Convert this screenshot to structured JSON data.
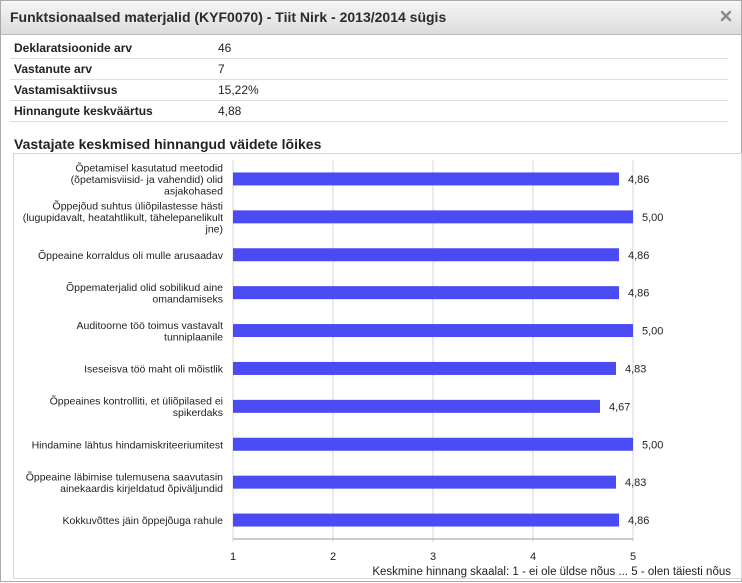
{
  "dialog": {
    "title": "Funktsionaalsed materjalid (KYF0070) - Tiit Nirk - 2013/2014 sügis"
  },
  "stats": [
    {
      "label": "Deklaratsioonide arv",
      "value": "46"
    },
    {
      "label": "Vastanute arv",
      "value": "7"
    },
    {
      "label": "Vastamisaktiivsus",
      "value": "15,22%"
    },
    {
      "label": "Hinnangute keskväärtus",
      "value": "4,88"
    }
  ],
  "section": {
    "title": "Vastajate keskmised hinnangud väidete lõikes"
  },
  "chart_data": {
    "type": "bar",
    "orientation": "horizontal",
    "bar_color": "#4b4bf3",
    "xlim": [
      1,
      5
    ],
    "x_ticks": [
      "1",
      "2",
      "3",
      "4",
      "5"
    ],
    "grid": true,
    "xlabel": "Keskmine hinnang skaalal: 1 - ei ole üldse nõus ... 5 - olen täiesti nõus",
    "categories": [
      [
        "Õpetamisel kasutatud meetodid",
        "(õpetamisviisid- ja vahendid) olid",
        "asjakohased"
      ],
      [
        "Õppejõud suhtus üliõpilastesse hästi",
        "(lugupidavalt, heatahtlikult, tähelepanelikult",
        "jne)"
      ],
      [
        "Õppeaine korraldus oli mulle arusaadav"
      ],
      [
        "Õppematerjalid olid sobilikud aine",
        "omandamiseks"
      ],
      [
        "Auditoorne töö toimus vastavalt",
        "tunniplaanile"
      ],
      [
        "Iseseisva töö maht oli mõistlik"
      ],
      [
        "Õppeaines kontrolliti, et üliõpilased ei",
        "spikerdaks"
      ],
      [
        "Hindamine lähtus hindamiskriteeriumitest"
      ],
      [
        "Õppeaine läbimise tulemusena saavutasin",
        "ainekaardis kirjeldatud õpiväljundid"
      ],
      [
        "Kokkuvõttes jäin õppejõuga rahule"
      ]
    ],
    "values": [
      4.86,
      5.0,
      4.86,
      4.86,
      5.0,
      4.83,
      4.67,
      5.0,
      4.83,
      4.86
    ],
    "value_labels": [
      "4,86",
      "5,00",
      "4,86",
      "4,86",
      "5,00",
      "4,83",
      "4,67",
      "5,00",
      "4,83",
      "4,86"
    ]
  }
}
